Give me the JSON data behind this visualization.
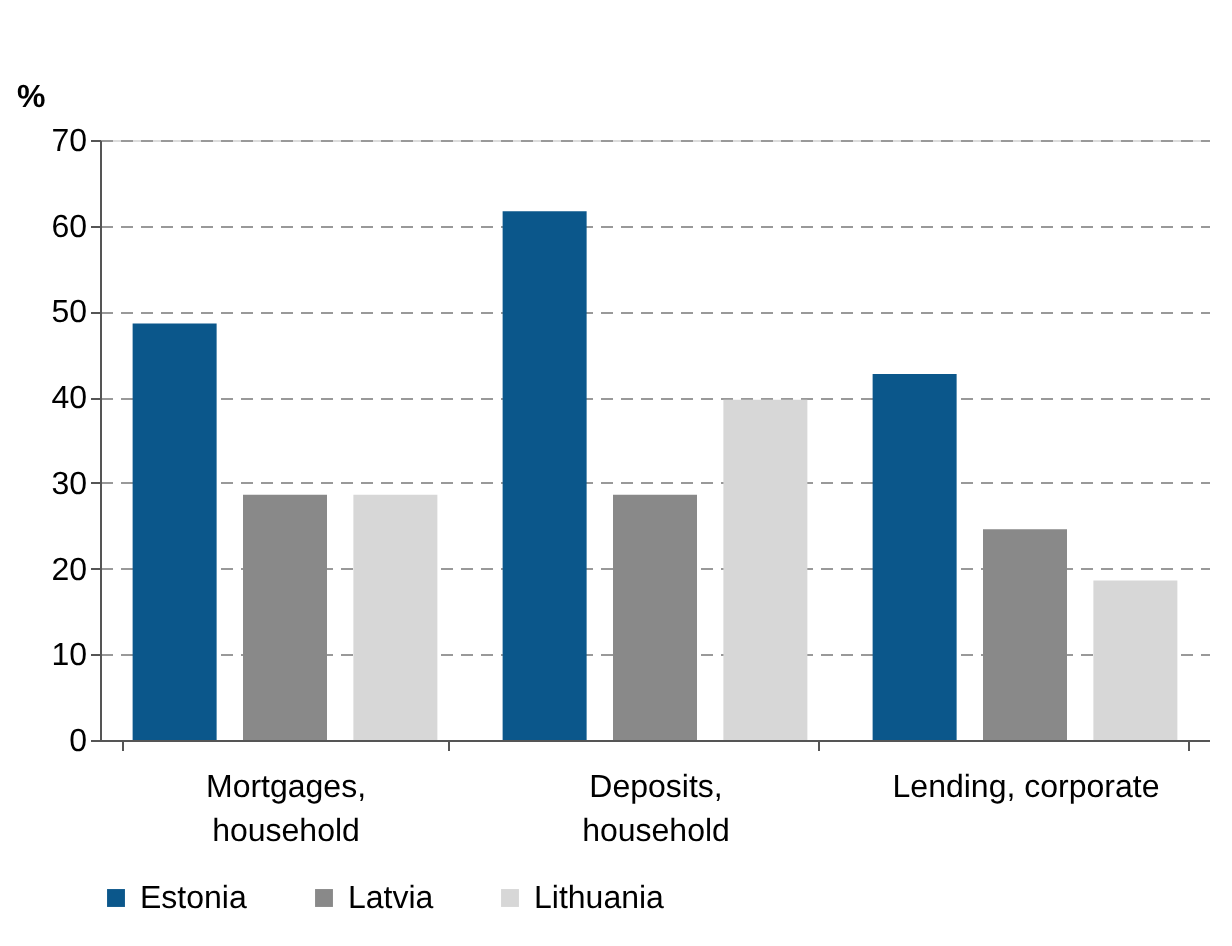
{
  "chart_data": {
    "type": "bar",
    "ylabel": "%",
    "categories": [
      "Mortgages, household",
      "Deposits, household",
      "Lending, corporate"
    ],
    "series": [
      {
        "name": "Estonia",
        "color": "#0b578b",
        "values": [
          48.6,
          61.7,
          42.7
        ]
      },
      {
        "name": "Latvia",
        "color": "#898989",
        "values": [
          28.6,
          28.6,
          24.6
        ]
      },
      {
        "name": "Lithuania",
        "color": "#d7d7d7",
        "values": [
          28.6,
          39.7,
          18.6
        ]
      }
    ],
    "ylim": [
      0,
      70
    ],
    "yticks": [
      0,
      10,
      20,
      30,
      40,
      50,
      60,
      70
    ],
    "grid": "y",
    "legend": "bottom"
  }
}
